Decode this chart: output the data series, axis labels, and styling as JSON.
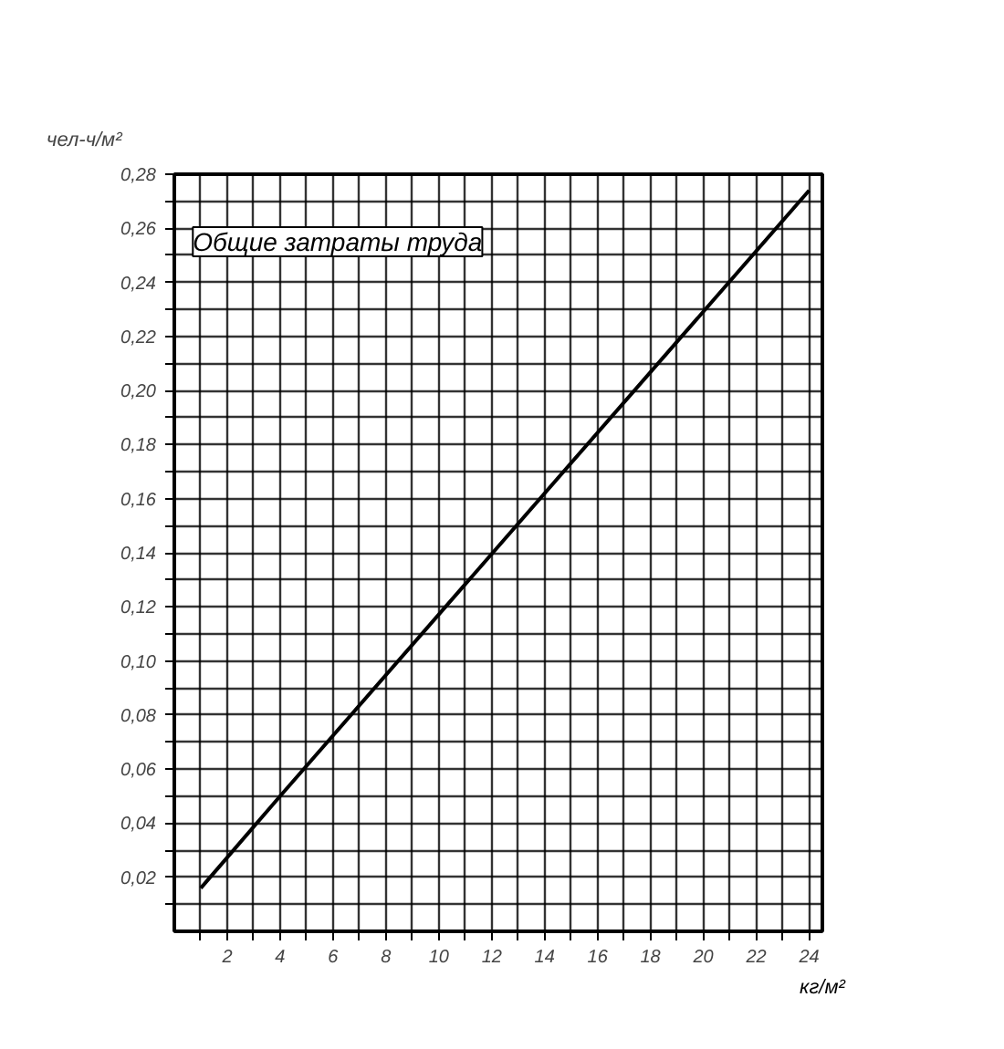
{
  "chart_data": {
    "type": "line",
    "title": "Общие затраты труда",
    "xlabel": "кг/м²",
    "ylabel": "чел-ч/м²",
    "x": [
      1,
      4,
      24
    ],
    "series": [
      {
        "color": "#000000",
        "values": [
          0.016,
          0.05,
          0.274
        ]
      }
    ],
    "xlim": [
      0,
      24.5
    ],
    "ylim": [
      0,
      0.28
    ],
    "xticks": [
      {
        "value": 1,
        "label": null
      },
      2,
      {
        "value": 3,
        "label": null
      },
      4,
      {
        "value": 5,
        "label": null
      },
      6,
      {
        "value": 7,
        "label": null
      },
      8,
      {
        "value": 9,
        "label": null
      },
      10,
      {
        "value": 11,
        "label": null
      },
      12,
      {
        "value": 13,
        "label": null
      },
      14,
      {
        "value": 15,
        "label": null
      },
      16,
      {
        "value": 17,
        "label": null
      },
      18,
      {
        "value": 19,
        "label": null
      },
      20,
      {
        "value": 21,
        "label": null
      },
      22,
      {
        "value": 23,
        "label": null
      },
      24
    ],
    "yticks": [
      {
        "value": 0.01,
        "label": null
      },
      {
        "value": 0.02,
        "label": "0,02"
      },
      {
        "value": 0.03,
        "label": null
      },
      {
        "value": 0.04,
        "label": "0,04"
      },
      {
        "value": 0.05,
        "label": null
      },
      {
        "value": 0.06,
        "label": "0,06"
      },
      {
        "value": 0.07,
        "label": null
      },
      {
        "value": 0.08,
        "label": "0,08"
      },
      {
        "value": 0.09,
        "label": null
      },
      {
        "value": 0.1,
        "label": "0,10"
      },
      {
        "value": 0.11,
        "label": null
      },
      {
        "value": 0.12,
        "label": "0,12"
      },
      {
        "value": 0.13,
        "label": null
      },
      {
        "value": 0.14,
        "label": "0,14"
      },
      {
        "value": 0.15,
        "label": null
      },
      {
        "value": 0.16,
        "label": "0,16"
      },
      {
        "value": 0.17,
        "label": null
      },
      {
        "value": 0.18,
        "label": "0,18"
      },
      {
        "value": 0.19,
        "label": null
      },
      {
        "value": 0.2,
        "label": "0,20"
      },
      {
        "value": 0.21,
        "label": null
      },
      {
        "value": 0.22,
        "label": "0,22"
      },
      {
        "value": 0.23,
        "label": null
      },
      {
        "value": 0.24,
        "label": "0,24"
      },
      {
        "value": 0.25,
        "label": null
      },
      {
        "value": 0.26,
        "label": "0,26"
      },
      {
        "value": 0.27,
        "label": null
      },
      {
        "value": 0.28,
        "label": "0,28"
      }
    ],
    "grid": true,
    "line_style": "solid"
  }
}
